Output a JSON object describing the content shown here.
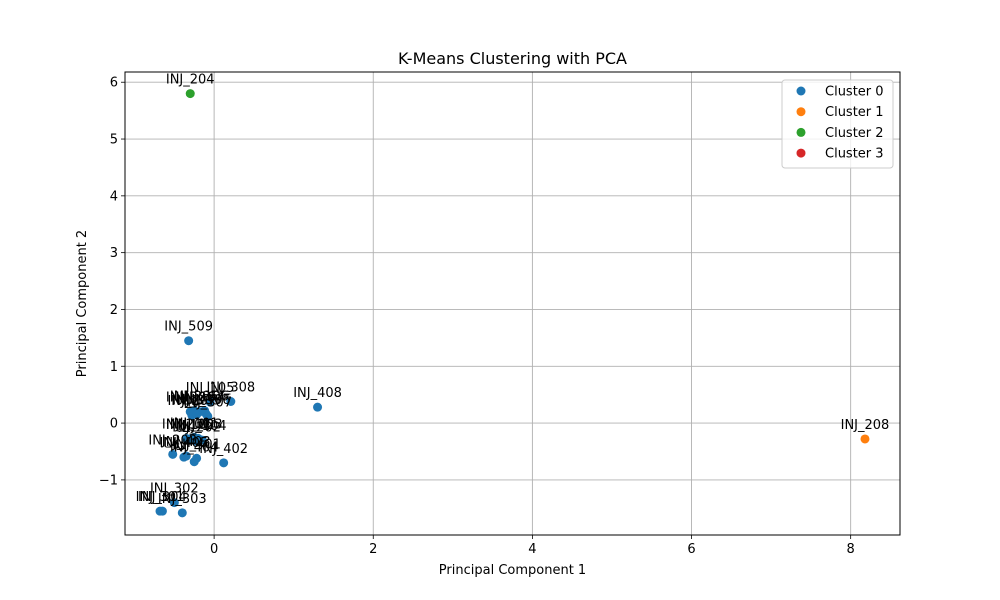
{
  "chart_data": {
    "type": "scatter",
    "title": "K-Means Clustering with PCA",
    "xlabel": "Principal Component 1",
    "ylabel": "Principal Component 2",
    "xlim": [
      -1.12,
      8.62
    ],
    "ylim": [
      -1.97,
      6.18
    ],
    "xticks": [
      0,
      2,
      4,
      6,
      8
    ],
    "yticks": [
      -1,
      0,
      1,
      2,
      3,
      4,
      5,
      6
    ],
    "grid": true,
    "legend_position": "top-right",
    "colors": {
      "Cluster 0": "#1f77b4",
      "Cluster 1": "#ff7f0e",
      "Cluster 2": "#2ca02c",
      "Cluster 3": "#d62728"
    },
    "series": [
      {
        "name": "Cluster 0",
        "points": [
          {
            "label": "INJ_509",
            "x": -0.32,
            "y": 1.45
          },
          {
            "label": "INJ_408",
            "x": 1.3,
            "y": 0.28
          },
          {
            "label": "INJ_308",
            "x": 0.21,
            "y": 0.38
          },
          {
            "label": "INJ_105",
            "x": -0.05,
            "y": 0.37
          },
          {
            "label": "INJ_106",
            "x": -0.12,
            "y": 0.22
          },
          {
            "label": "INJ_107",
            "x": -0.18,
            "y": 0.2
          },
          {
            "label": "INJ_205",
            "x": -0.25,
            "y": 0.22
          },
          {
            "label": "INJ_206",
            "x": -0.3,
            "y": 0.2
          },
          {
            "label": "INJ_207",
            "x": -0.28,
            "y": 0.14
          },
          {
            "label": "INJ_305",
            "x": -0.22,
            "y": 0.15
          },
          {
            "label": "INJ_306",
            "x": -0.1,
            "y": 0.16
          },
          {
            "label": "INJ_307",
            "x": -0.08,
            "y": 0.12
          },
          {
            "label": "INJ_101",
            "x": -0.25,
            "y": -0.25
          },
          {
            "label": "INJ_102",
            "x": -0.3,
            "y": -0.28
          },
          {
            "label": "INJ_103",
            "x": -0.2,
            "y": -0.27
          },
          {
            "label": "INJ_104",
            "x": -0.15,
            "y": -0.3
          },
          {
            "label": "INJ_201",
            "x": -0.35,
            "y": -0.27
          },
          {
            "label": "INJ_202",
            "x": -0.22,
            "y": -0.32
          },
          {
            "label": "INJ_203",
            "x": -0.52,
            "y": -0.55
          },
          {
            "label": "INJ_402",
            "x": 0.12,
            "y": -0.7
          },
          {
            "label": "INJ_401",
            "x": -0.22,
            "y": -0.62
          },
          {
            "label": "INJ_403",
            "x": -0.35,
            "y": -0.58
          },
          {
            "label": "INJ_404",
            "x": -0.25,
            "y": -0.68
          },
          {
            "label": "INJ_405",
            "x": -0.38,
            "y": -0.6
          },
          {
            "label": "INJ_302",
            "x": -0.5,
            "y": -1.4
          },
          {
            "label": "INJ_303",
            "x": -0.4,
            "y": -1.58
          },
          {
            "label": "INJ_301",
            "x": -0.68,
            "y": -1.55
          },
          {
            "label": "INJ_304",
            "x": -0.65,
            "y": -1.55
          }
        ]
      },
      {
        "name": "Cluster 1",
        "points": [
          {
            "label": "INJ_208",
            "x": 8.18,
            "y": -0.28
          }
        ]
      },
      {
        "name": "Cluster 2",
        "points": [
          {
            "label": "INJ_204",
            "x": -0.3,
            "y": 5.8
          }
        ]
      },
      {
        "name": "Cluster 3",
        "points": []
      }
    ]
  }
}
